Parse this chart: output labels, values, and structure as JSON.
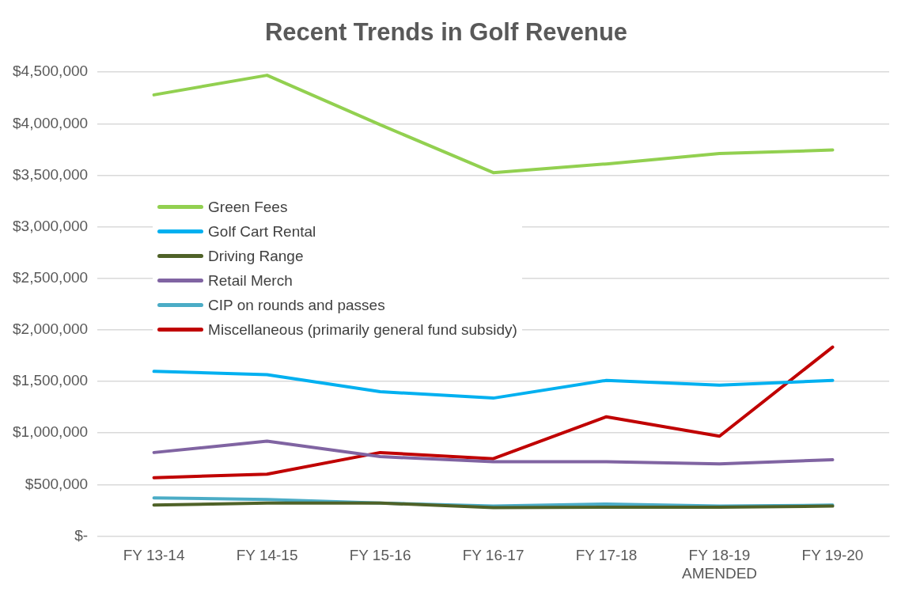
{
  "chart_data": {
    "type": "line",
    "title": "Recent Trends in Golf Revenue",
    "categories": [
      "FY 13-14",
      "FY 14-15",
      "FY 15-16",
      "FY 16-17",
      "FY 17-18",
      "FY 18-19\nAMENDED",
      "FY 19-20"
    ],
    "series": [
      {
        "name": "Green Fees",
        "color": "#92d050",
        "values": [
          4280000,
          4470000,
          3990000,
          3525000,
          3610000,
          3710000,
          3745000
        ]
      },
      {
        "name": "Golf Cart Rental",
        "color": "#00b0f0",
        "values": [
          1597000,
          1566000,
          1400000,
          1338000,
          1510000,
          1463000,
          1510000
        ]
      },
      {
        "name": "Driving Range",
        "color": "#4f6228",
        "values": [
          300000,
          320000,
          320000,
          275000,
          280000,
          280000,
          290000
        ]
      },
      {
        "name": "Retail Merch",
        "color": "#8064a2",
        "values": [
          810000,
          920000,
          770000,
          720000,
          720000,
          700000,
          740000
        ]
      },
      {
        "name": "CIP on rounds and passes",
        "color": "#4bacc6",
        "values": [
          370000,
          354000,
          320000,
          290000,
          310000,
          290000,
          300000
        ]
      },
      {
        "name": "Miscellaneous (primarily general fund subsidy)",
        "color": "#c00000",
        "values": [
          566000,
          600000,
          810000,
          750000,
          1157000,
          968000,
          1833000
        ]
      }
    ],
    "ylim": [
      0,
      4500000
    ],
    "yticks": [
      {
        "value": 0,
        "label": "$-"
      },
      {
        "value": 500000,
        "label": "$500,000"
      },
      {
        "value": 1000000,
        "label": "$1,000,000"
      },
      {
        "value": 1500000,
        "label": "$1,500,000"
      },
      {
        "value": 2000000,
        "label": "$2,000,000"
      },
      {
        "value": 2500000,
        "label": "$2,500,000"
      },
      {
        "value": 3000000,
        "label": "$3,000,000"
      },
      {
        "value": 3500000,
        "label": "$3,500,000"
      },
      {
        "value": 4000000,
        "label": "$4,000,000"
      },
      {
        "value": 4500000,
        "label": "$4,500,000"
      }
    ],
    "grid": "y",
    "legend": "left",
    "marker": "none",
    "line_style": "solid"
  }
}
